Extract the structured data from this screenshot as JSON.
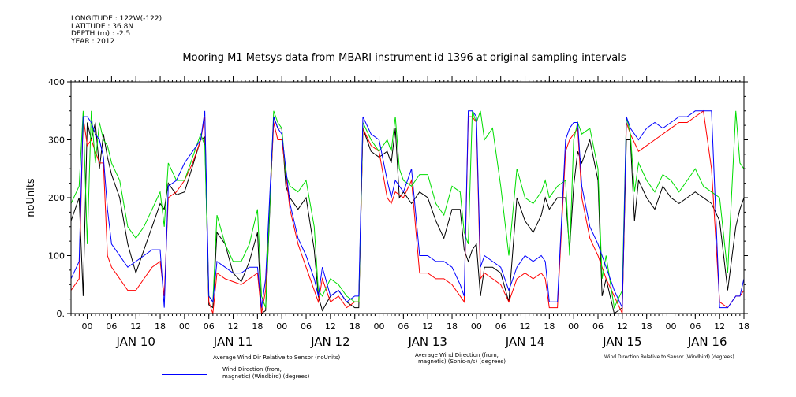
{
  "meta_lines": [
    "LONGITUDE : 122W(-122)",
    "LATITUDE : 36.8N",
    "DEPTH (m) : -2.5",
    "YEAR : 2012"
  ],
  "chart_data": {
    "type": "line",
    "title": "Mooring M1 Metsys data from MBARI instrument id 1396 at original sampling intervals",
    "ylabel": "noUnits",
    "xlabel": "",
    "xlim_hours": [
      -4,
      162
    ],
    "ylim": [
      0,
      400
    ],
    "y_ticks": [
      0,
      100,
      200,
      300,
      400
    ],
    "y_tick_labels": [
      "0.",
      "100",
      "200",
      "300",
      "400"
    ],
    "x_ticks": [
      {
        "h": 0,
        "label": "00"
      },
      {
        "h": 6,
        "label": "06"
      },
      {
        "h": 12,
        "label": "12"
      },
      {
        "h": 18,
        "label": "18"
      },
      {
        "h": 24,
        "label": "00"
      },
      {
        "h": 30,
        "label": "06"
      },
      {
        "h": 36,
        "label": "12"
      },
      {
        "h": 42,
        "label": "18"
      },
      {
        "h": 48,
        "label": "00"
      },
      {
        "h": 54,
        "label": "06"
      },
      {
        "h": 60,
        "label": "12"
      },
      {
        "h": 66,
        "label": "18"
      },
      {
        "h": 72,
        "label": "00"
      },
      {
        "h": 78,
        "label": "06"
      },
      {
        "h": 84,
        "label": "12"
      },
      {
        "h": 90,
        "label": "18"
      },
      {
        "h": 96,
        "label": "00"
      },
      {
        "h": 102,
        "label": "06"
      },
      {
        "h": 108,
        "label": "12"
      },
      {
        "h": 114,
        "label": "18"
      },
      {
        "h": 120,
        "label": "00"
      },
      {
        "h": 126,
        "label": "06"
      },
      {
        "h": 132,
        "label": "12"
      },
      {
        "h": 138,
        "label": "18"
      },
      {
        "h": 144,
        "label": "00"
      },
      {
        "h": 150,
        "label": "06"
      },
      {
        "h": 156,
        "label": "12"
      },
      {
        "h": 162,
        "label": "18"
      }
    ],
    "day_labels": [
      {
        "h": 12,
        "label": "JAN 10"
      },
      {
        "h": 36,
        "label": "JAN 11"
      },
      {
        "h": 60,
        "label": "JAN 12"
      },
      {
        "h": 84,
        "label": "JAN 13"
      },
      {
        "h": 108,
        "label": "JAN 14"
      },
      {
        "h": 132,
        "label": "JAN 15"
      },
      {
        "h": 153,
        "label": "JAN 16"
      }
    ],
    "colors": {
      "black": "#000000",
      "red": "#ff0000",
      "green": "#00dd00",
      "blue": "#0000ff"
    },
    "series": [
      {
        "name": "Average Wind Dir Relative to Sensor (noUnits)",
        "color": "black",
        "x": [
          -4,
          -2,
          -1,
          0,
          1,
          2,
          3,
          4,
          5,
          6,
          8,
          10,
          12,
          14,
          16,
          18,
          19,
          20,
          22,
          24,
          26,
          28,
          29,
          30,
          31,
          32,
          34,
          36,
          38,
          40,
          42,
          43,
          44,
          46,
          47,
          48,
          49,
          50,
          52,
          54,
          56,
          57,
          58,
          60,
          62,
          64,
          66,
          67,
          68,
          70,
          72,
          74,
          75,
          76,
          77,
          78,
          80,
          82,
          84,
          86,
          88,
          90,
          92,
          93,
          94,
          95,
          96,
          97,
          98,
          100,
          102,
          104,
          106,
          108,
          110,
          112,
          113,
          114,
          116,
          118,
          119,
          120,
          121,
          122,
          124,
          126,
          127,
          128,
          130,
          132,
          133,
          134,
          135,
          136,
          138,
          140,
          142,
          144,
          146,
          148,
          150,
          152,
          154,
          156,
          158,
          160,
          161,
          162
        ],
        "y": [
          160,
          200,
          30,
          330,
          300,
          330,
          250,
          310,
          270,
          240,
          200,
          120,
          70,
          110,
          150,
          190,
          180,
          225,
          205,
          210,
          255,
          300,
          305,
          15,
          10,
          140,
          120,
          70,
          55,
          90,
          140,
          0,
          5,
          340,
          320,
          320,
          220,
          200,
          180,
          200,
          110,
          30,
          5,
          30,
          40,
          20,
          10,
          10,
          320,
          280,
          270,
          280,
          260,
          320,
          200,
          210,
          190,
          210,
          200,
          160,
          130,
          180,
          180,
          110,
          90,
          110,
          120,
          30,
          80,
          80,
          70,
          20,
          200,
          160,
          140,
          170,
          200,
          180,
          200,
          200,
          110,
          220,
          280,
          260,
          300,
          230,
          30,
          60,
          0,
          10,
          300,
          300,
          160,
          230,
          200,
          180,
          220,
          200,
          190,
          200,
          210,
          200,
          190,
          160,
          40,
          150,
          180,
          200
        ]
      },
      {
        "name": "Average Wind Direction (from, magnetic) (Sonic-n/s) (degrees)",
        "color": "red",
        "x": [
          -4,
          -2,
          -1,
          0,
          1,
          2,
          3,
          4,
          5,
          6,
          8,
          10,
          12,
          14,
          16,
          18,
          19,
          20,
          22,
          24,
          26,
          28,
          29,
          30,
          31,
          32,
          34,
          36,
          38,
          40,
          42,
          43,
          44,
          46,
          47,
          48,
          50,
          52,
          54,
          56,
          57,
          58,
          60,
          62,
          64,
          66,
          67,
          68,
          70,
          72,
          74,
          75,
          76,
          78,
          80,
          82,
          84,
          86,
          88,
          90,
          92,
          93,
          94,
          95,
          96,
          97,
          98,
          100,
          102,
          104,
          106,
          108,
          110,
          112,
          113,
          114,
          116,
          118,
          119,
          120,
          121,
          122,
          124,
          126,
          127,
          128,
          130,
          132,
          133,
          134,
          136,
          138,
          140,
          142,
          144,
          146,
          148,
          150,
          152,
          154,
          156,
          158,
          160,
          161,
          162
        ],
        "y": [
          40,
          60,
          340,
          290,
          300,
          280,
          260,
          260,
          100,
          80,
          60,
          40,
          40,
          60,
          80,
          90,
          30,
          200,
          210,
          230,
          260,
          300,
          340,
          20,
          0,
          70,
          60,
          55,
          50,
          60,
          70,
          0,
          40,
          330,
          300,
          300,
          180,
          120,
          80,
          40,
          20,
          60,
          20,
          30,
          10,
          20,
          20,
          320,
          290,
          280,
          200,
          190,
          210,
          200,
          230,
          70,
          70,
          60,
          60,
          50,
          30,
          20,
          340,
          340,
          330,
          60,
          70,
          60,
          50,
          20,
          60,
          70,
          60,
          70,
          60,
          10,
          10,
          280,
          300,
          310,
          320,
          200,
          130,
          100,
          80,
          60,
          30,
          0,
          330,
          310,
          280,
          290,
          300,
          310,
          320,
          330,
          330,
          340,
          350,
          250,
          20,
          10,
          30,
          30,
          40
        ]
      },
      {
        "name": "Wind Direction Relative to Sensor (Windbird) (degrees)",
        "color": "green",
        "x": [
          -4,
          -2,
          -1,
          0,
          1,
          2,
          3,
          4,
          5,
          6,
          8,
          10,
          12,
          14,
          16,
          18,
          19,
          20,
          22,
          24,
          26,
          28,
          29,
          30,
          31,
          32,
          34,
          36,
          38,
          40,
          42,
          43,
          44,
          46,
          47,
          48,
          49,
          50,
          52,
          54,
          56,
          57,
          58,
          60,
          62,
          64,
          66,
          67,
          68,
          70,
          72,
          74,
          75,
          76,
          77,
          78,
          80,
          82,
          84,
          86,
          88,
          90,
          92,
          93,
          94,
          95,
          96,
          97,
          98,
          100,
          102,
          104,
          106,
          108,
          110,
          112,
          113,
          114,
          116,
          118,
          119,
          120,
          121,
          122,
          124,
          126,
          127,
          128,
          130,
          132,
          133,
          134,
          135,
          136,
          138,
          140,
          142,
          144,
          146,
          148,
          150,
          152,
          154,
          156,
          158,
          160,
          161,
          162
        ],
        "y": [
          190,
          220,
          350,
          120,
          350,
          260,
          330,
          300,
          290,
          260,
          230,
          150,
          130,
          150,
          180,
          210,
          150,
          260,
          230,
          230,
          270,
          310,
          290,
          30,
          20,
          170,
          120,
          90,
          90,
          120,
          180,
          30,
          10,
          350,
          330,
          320,
          240,
          220,
          210,
          230,
          150,
          40,
          30,
          60,
          50,
          30,
          20,
          20,
          330,
          300,
          280,
          300,
          280,
          340,
          250,
          230,
          220,
          240,
          240,
          190,
          170,
          220,
          210,
          140,
          120,
          350,
          330,
          350,
          300,
          320,
          220,
          100,
          250,
          200,
          190,
          210,
          230,
          200,
          220,
          230,
          100,
          300,
          330,
          310,
          320,
          250,
          60,
          100,
          10,
          40,
          340,
          310,
          210,
          260,
          230,
          210,
          240,
          230,
          210,
          230,
          250,
          220,
          210,
          200,
          70,
          350,
          260,
          250
        ]
      },
      {
        "name": "Wind Direction (from, magnetic) (Windbird) (degrees)",
        "color": "blue",
        "x": [
          -4,
          -2,
          -1,
          0,
          1,
          2,
          3,
          4,
          5,
          6,
          8,
          10,
          12,
          14,
          16,
          18,
          19,
          20,
          22,
          24,
          26,
          28,
          29,
          30,
          31,
          32,
          34,
          36,
          38,
          40,
          42,
          43,
          44,
          46,
          47,
          48,
          50,
          52,
          54,
          56,
          57,
          58,
          60,
          62,
          64,
          66,
          67,
          68,
          70,
          72,
          74,
          75,
          76,
          78,
          80,
          82,
          84,
          86,
          88,
          90,
          92,
          93,
          94,
          95,
          96,
          97,
          98,
          100,
          102,
          104,
          106,
          108,
          110,
          112,
          113,
          114,
          116,
          118,
          119,
          120,
          121,
          122,
          124,
          126,
          127,
          128,
          130,
          132,
          133,
          134,
          136,
          138,
          140,
          142,
          144,
          146,
          148,
          150,
          152,
          154,
          156,
          158,
          160,
          161,
          162
        ],
        "y": [
          60,
          90,
          340,
          340,
          330,
          310,
          300,
          270,
          180,
          120,
          100,
          80,
          90,
          100,
          110,
          110,
          10,
          220,
          230,
          260,
          280,
          300,
          350,
          30,
          20,
          90,
          80,
          70,
          70,
          80,
          80,
          10,
          60,
          340,
          320,
          310,
          190,
          130,
          100,
          60,
          30,
          80,
          30,
          40,
          20,
          30,
          30,
          340,
          310,
          300,
          230,
          200,
          230,
          210,
          250,
          100,
          100,
          90,
          90,
          80,
          50,
          30,
          350,
          350,
          340,
          80,
          100,
          90,
          80,
          40,
          80,
          100,
          90,
          100,
          90,
          20,
          20,
          300,
          320,
          330,
          330,
          220,
          150,
          120,
          100,
          80,
          40,
          10,
          340,
          320,
          300,
          320,
          330,
          320,
          330,
          340,
          340,
          350,
          350,
          350,
          10,
          10,
          30,
          30,
          60
        ]
      }
    ],
    "legend": [
      {
        "line1": "Average Wind Dir Relative to Sensor (noUnits)",
        "line2": "",
        "color": "black"
      },
      {
        "line1": "Average Wind Direction (from,",
        "line2": "magnetic) (Sonic-n/s) (degrees)",
        "color": "red"
      },
      {
        "line1": "Wind Direction Relative to Sensor (Windbird) (degrees)",
        "line2": "",
        "color": "green"
      },
      {
        "line1": "Wind Direction (from,",
        "line2": "magnetic) (Windbird) (degrees)",
        "color": "blue"
      }
    ]
  }
}
